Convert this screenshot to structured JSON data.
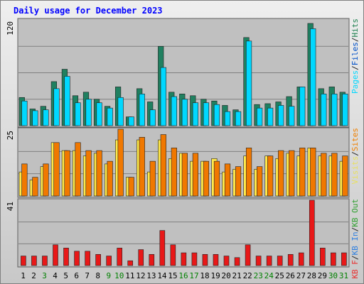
{
  "chart_data": {
    "type": "bar",
    "title": "Daily usage for December 2023",
    "categories": [
      "1",
      "2",
      "3",
      "4",
      "5",
      "6",
      "7",
      "8",
      "9",
      "10",
      "11",
      "12",
      "13",
      "14",
      "15",
      "16",
      "17",
      "18",
      "19",
      "20",
      "21",
      "22",
      "23",
      "24",
      "25",
      "26",
      "27",
      "28",
      "29",
      "30",
      "31"
    ],
    "weekend_days": [
      "3",
      "9",
      "10",
      "16",
      "17",
      "23",
      "24",
      "30",
      "31"
    ],
    "panels": [
      {
        "ymax": 120,
        "ymax_label": "120",
        "legend": [
          {
            "text": "Pages",
            "color": "#00d8ff"
          },
          {
            "text": "/",
            "color": "#202020"
          },
          {
            "text": "Files",
            "color": "#0050c8"
          },
          {
            "text": "/",
            "color": "#202020"
          },
          {
            "text": "Hits",
            "color": "#1f8050"
          }
        ],
        "series": [
          {
            "name": "Hits",
            "color": "#208060",
            "values": [
              32,
              19,
              22,
              50,
              64,
              34,
              38,
              30,
              22,
              44,
              10,
              42,
              27,
              90,
              38,
              36,
              34,
              30,
              28,
              23,
              18,
              100,
              24,
              25,
              27,
              33,
              44,
              116,
              42,
              44,
              38
            ]
          },
          {
            "name": "Pages",
            "color": "#00d8ff",
            "values": [
              28,
              17,
              18,
              42,
              56,
              26,
              30,
              26,
              20,
              32,
              10,
              36,
              18,
              66,
              33,
              30,
              26,
              26,
              24,
              16,
              16,
              96,
              20,
              20,
              23,
              22,
              44,
              110,
              36,
              36,
              36
            ]
          }
        ]
      },
      {
        "ymax": 25,
        "ymax_label": "25",
        "legend": [
          {
            "text": "Visits",
            "color": "#e8e060"
          },
          {
            "text": "/",
            "color": "#202020"
          },
          {
            "text": "Sites",
            "color": "#f08000"
          }
        ],
        "series": [
          {
            "name": "Visits",
            "color": "#ffe84a",
            "values": [
              9,
              6,
              11,
              20,
              17,
              17,
              15,
              16,
              12,
              21,
              7,
              21,
              9,
              21,
              14,
              16,
              13,
              13,
              14,
              9,
              10,
              15,
              10,
              15,
              14,
              16,
              15,
              18,
              15,
              15,
              13
            ]
          },
          {
            "name": "Sites",
            "color": "#f07800",
            "values": [
              12,
              7,
              12,
              20,
              17,
              20,
              17,
              17,
              13,
              25,
              7,
              22,
              13,
              23,
              18,
              16,
              16,
              13,
              13,
              12,
              11,
              18,
              11,
              15,
              17,
              17,
              18,
              18,
              16,
              16,
              15
            ]
          }
        ]
      },
      {
        "ymax": 41,
        "ymax_label": "41",
        "legend": [
          {
            "text": "KB F",
            "color": "#e83030"
          },
          {
            "text": "/",
            "color": "#202020"
          },
          {
            "text": "KB In",
            "color": "#3080e0"
          },
          {
            "text": "/",
            "color": "#202020"
          },
          {
            "text": "KB Out",
            "color": "#30a030"
          }
        ],
        "series": [
          {
            "name": "KB F",
            "color": "#e81818",
            "values": [
              6,
              6,
              6,
              13,
              11,
              9,
              9,
              7,
              6,
              11,
              3,
              10,
              7,
              22,
              13,
              8,
              8,
              7,
              7,
              6,
              5,
              13,
              6,
              6,
              6,
              7,
              8,
              41,
              11,
              8,
              8
            ]
          }
        ]
      }
    ]
  }
}
